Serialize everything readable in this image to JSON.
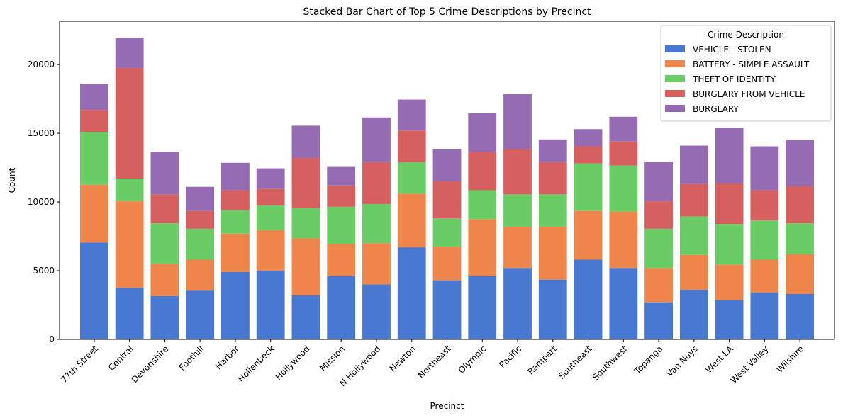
{
  "chart_data": {
    "type": "bar",
    "stacked": true,
    "title": "Stacked Bar Chart of Top 5 Crime Descriptions by Precinct",
    "xlabel": "Precinct",
    "ylabel": "Count",
    "ylim": [
      0,
      23150
    ],
    "yticks": [
      0,
      5000,
      10000,
      15000,
      20000
    ],
    "legend_title": "Crime Description",
    "legend_position": "top-right",
    "grid": false,
    "categories": [
      "77th Street",
      "Central",
      "Devonshire",
      "Foothill",
      "Harbor",
      "Hollenbeck",
      "Hollywood",
      "Mission",
      "N Hollywood",
      "Newton",
      "Northeast",
      "Olympic",
      "Pacific",
      "Rampart",
      "Southeast",
      "Southwest",
      "Topanga",
      "Van Nuys",
      "West LA",
      "West Valley",
      "Wilshire"
    ],
    "series": [
      {
        "name": "VEHICLE - STOLEN",
        "color": "#4878d0",
        "values": [
          7050,
          3750,
          3150,
          3550,
          4900,
          5000,
          3200,
          4600,
          4000,
          6700,
          4300,
          4600,
          5200,
          4350,
          5800,
          5200,
          2700,
          3600,
          2850,
          3400,
          3300
        ]
      },
      {
        "name": "BATTERY - SIMPLE ASSAULT",
        "color": "#ee854a",
        "values": [
          4200,
          6300,
          2350,
          2250,
          2800,
          2950,
          4150,
          2350,
          3000,
          3900,
          2450,
          4150,
          3000,
          3850,
          3550,
          4100,
          2500,
          2550,
          2600,
          2400,
          2900
        ]
      },
      {
        "name": "THEFT OF IDENTITY",
        "color": "#6acc64",
        "values": [
          3850,
          1650,
          2950,
          2250,
          1700,
          1800,
          2200,
          2700,
          2850,
          2300,
          2050,
          2100,
          2350,
          2350,
          3450,
          3350,
          2850,
          2800,
          2950,
          2850,
          2250
        ]
      },
      {
        "name": "BURGLARY FROM VEHICLE",
        "color": "#d65f5f",
        "values": [
          1600,
          8050,
          2100,
          1300,
          1450,
          1200,
          3650,
          1550,
          3050,
          2300,
          2700,
          2800,
          3300,
          2350,
          1250,
          1750,
          2000,
          2350,
          2950,
          2200,
          2700
        ]
      },
      {
        "name": "BURGLARY",
        "color": "#956cb4",
        "values": [
          1900,
          2200,
          3100,
          1750,
          2000,
          1500,
          2350,
          1350,
          3250,
          2250,
          2350,
          2800,
          4000,
          1650,
          1250,
          1800,
          2850,
          2800,
          4050,
          3200,
          3350
        ]
      }
    ]
  }
}
